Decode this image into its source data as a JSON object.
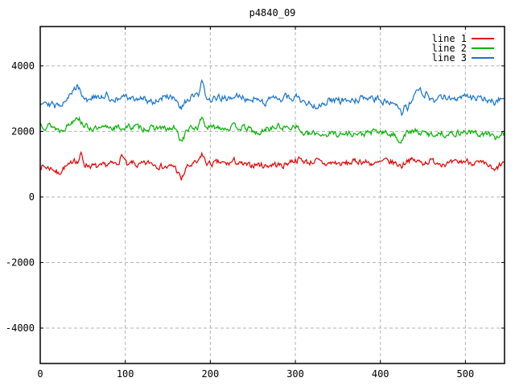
{
  "title": "p4840_09",
  "chart_data": {
    "type": "line",
    "title": "p4840_09",
    "xlabel": "",
    "ylabel": "",
    "xlim": [
      0,
      546
    ],
    "ylim": [
      -5080,
      5200
    ],
    "x_ticks": [
      0,
      100,
      200,
      300,
      400,
      500
    ],
    "y_ticks": [
      -4000,
      -2000,
      0,
      2000,
      4000
    ],
    "grid": true,
    "grid_color": "#b4b4b4",
    "legend_position": "top-right",
    "n_points": 547,
    "series": [
      {
        "name": "line 1",
        "color": "#e60000",
        "noise": {
          "amplitude": 80,
          "ar": 0.45,
          "seed": 7
        },
        "keypoints": [
          [
            0,
            950
          ],
          [
            8,
            900
          ],
          [
            15,
            870
          ],
          [
            21,
            700
          ],
          [
            28,
            900
          ],
          [
            35,
            950
          ],
          [
            40,
            1200
          ],
          [
            44,
            1050
          ],
          [
            48,
            1300
          ],
          [
            52,
            1000
          ],
          [
            60,
            950
          ],
          [
            70,
            900
          ],
          [
            80,
            1000
          ],
          [
            90,
            1000
          ],
          [
            97,
            1280
          ],
          [
            103,
            900
          ],
          [
            108,
            1050
          ],
          [
            115,
            950
          ],
          [
            122,
            1000
          ],
          [
            130,
            1050
          ],
          [
            140,
            950
          ],
          [
            150,
            900
          ],
          [
            158,
            950
          ],
          [
            166,
            520
          ],
          [
            172,
            900
          ],
          [
            180,
            1000
          ],
          [
            186,
            1050
          ],
          [
            190,
            1320
          ],
          [
            195,
            1050
          ],
          [
            200,
            1000
          ],
          [
            210,
            1050
          ],
          [
            220,
            1000
          ],
          [
            228,
            1100
          ],
          [
            235,
            1000
          ],
          [
            245,
            950
          ],
          [
            255,
            1000
          ],
          [
            265,
            950
          ],
          [
            275,
            1000
          ],
          [
            285,
            950
          ],
          [
            295,
            1100
          ],
          [
            305,
            1150
          ],
          [
            315,
            1050
          ],
          [
            325,
            1100
          ],
          [
            335,
            1000
          ],
          [
            345,
            1050
          ],
          [
            355,
            1000
          ],
          [
            365,
            1050
          ],
          [
            375,
            1100
          ],
          [
            385,
            1050
          ],
          [
            395,
            1000
          ],
          [
            405,
            1100
          ],
          [
            415,
            1050
          ],
          [
            425,
            950
          ],
          [
            432,
            1150
          ],
          [
            440,
            1100
          ],
          [
            450,
            1050
          ],
          [
            460,
            1100
          ],
          [
            470,
            1050
          ],
          [
            480,
            1000
          ],
          [
            490,
            1050
          ],
          [
            500,
            1100
          ],
          [
            510,
            1050
          ],
          [
            520,
            1000
          ],
          [
            528,
            950
          ],
          [
            534,
            760
          ],
          [
            540,
            950
          ],
          [
            546,
            1050
          ]
        ]
      },
      {
        "name": "line 2",
        "color": "#00b400",
        "noise": {
          "amplitude": 80,
          "ar": 0.45,
          "seed": 13
        },
        "keypoints": [
          [
            0,
            2250
          ],
          [
            6,
            2150
          ],
          [
            12,
            2200
          ],
          [
            18,
            2100
          ],
          [
            24,
            2030
          ],
          [
            30,
            2150
          ],
          [
            36,
            2250
          ],
          [
            43,
            2500
          ],
          [
            48,
            2300
          ],
          [
            54,
            2150
          ],
          [
            60,
            2100
          ],
          [
            70,
            2050
          ],
          [
            80,
            2150
          ],
          [
            90,
            2100
          ],
          [
            100,
            2120
          ],
          [
            110,
            2150
          ],
          [
            120,
            2100
          ],
          [
            130,
            2080
          ],
          [
            140,
            2120
          ],
          [
            150,
            2050
          ],
          [
            158,
            2100
          ],
          [
            166,
            1700
          ],
          [
            173,
            2050
          ],
          [
            180,
            2100
          ],
          [
            186,
            2150
          ],
          [
            190,
            2450
          ],
          [
            195,
            2150
          ],
          [
            200,
            2100
          ],
          [
            210,
            2150
          ],
          [
            220,
            2100
          ],
          [
            230,
            2150
          ],
          [
            240,
            2100
          ],
          [
            248,
            2050
          ],
          [
            257,
            1880
          ],
          [
            264,
            2080
          ],
          [
            272,
            2100
          ],
          [
            280,
            2150
          ],
          [
            290,
            2100
          ],
          [
            300,
            2200
          ],
          [
            308,
            1950
          ],
          [
            315,
            1900
          ],
          [
            325,
            1950
          ],
          [
            335,
            1900
          ],
          [
            345,
            1950
          ],
          [
            355,
            1900
          ],
          [
            365,
            1950
          ],
          [
            375,
            1900
          ],
          [
            385,
            1950
          ],
          [
            395,
            2000
          ],
          [
            405,
            1950
          ],
          [
            415,
            1900
          ],
          [
            424,
            1700
          ],
          [
            430,
            1950
          ],
          [
            440,
            2000
          ],
          [
            450,
            1950
          ],
          [
            460,
            1900
          ],
          [
            470,
            1950
          ],
          [
            480,
            1900
          ],
          [
            490,
            1950
          ],
          [
            500,
            2000
          ],
          [
            510,
            1950
          ],
          [
            520,
            1900
          ],
          [
            528,
            1950
          ],
          [
            534,
            1760
          ],
          [
            540,
            1900
          ],
          [
            546,
            1950
          ]
        ]
      },
      {
        "name": "line 3",
        "color": "#1874cd",
        "noise": {
          "amplitude": 90,
          "ar": 0.45,
          "seed": 29
        },
        "keypoints": [
          [
            0,
            2900
          ],
          [
            6,
            2950
          ],
          [
            12,
            2850
          ],
          [
            18,
            2750
          ],
          [
            24,
            2850
          ],
          [
            30,
            3000
          ],
          [
            36,
            3100
          ],
          [
            44,
            3450
          ],
          [
            50,
            3100
          ],
          [
            56,
            2950
          ],
          [
            62,
            3050
          ],
          [
            70,
            3000
          ],
          [
            78,
            3100
          ],
          [
            86,
            2950
          ],
          [
            94,
            3000
          ],
          [
            102,
            3050
          ],
          [
            110,
            2950
          ],
          [
            118,
            3050
          ],
          [
            126,
            2950
          ],
          [
            134,
            2900
          ],
          [
            142,
            3000
          ],
          [
            150,
            3100
          ],
          [
            158,
            2950
          ],
          [
            166,
            2650
          ],
          [
            172,
            2950
          ],
          [
            180,
            3050
          ],
          [
            186,
            3100
          ],
          [
            190,
            3480
          ],
          [
            195,
            3100
          ],
          [
            200,
            2950
          ],
          [
            208,
            3000
          ],
          [
            216,
            3050
          ],
          [
            224,
            2950
          ],
          [
            232,
            3100
          ],
          [
            240,
            3000
          ],
          [
            248,
            3050
          ],
          [
            256,
            2950
          ],
          [
            264,
            2900
          ],
          [
            272,
            3000
          ],
          [
            280,
            2950
          ],
          [
            288,
            3050
          ],
          [
            296,
            3000
          ],
          [
            300,
            3100
          ],
          [
            308,
            2900
          ],
          [
            316,
            2850
          ],
          [
            324,
            2800
          ],
          [
            332,
            2850
          ],
          [
            340,
            2950
          ],
          [
            348,
            2900
          ],
          [
            356,
            2950
          ],
          [
            364,
            2900
          ],
          [
            372,
            2950
          ],
          [
            380,
            3000
          ],
          [
            388,
            2950
          ],
          [
            396,
            3000
          ],
          [
            404,
            2900
          ],
          [
            412,
            2950
          ],
          [
            418,
            2900
          ],
          [
            422,
            2750
          ],
          [
            425,
            2550
          ],
          [
            428,
            2800
          ],
          [
            432,
            2700
          ],
          [
            436,
            2900
          ],
          [
            442,
            3150
          ],
          [
            446,
            3250
          ],
          [
            452,
            3150
          ],
          [
            458,
            3050
          ],
          [
            464,
            2950
          ],
          [
            470,
            3000
          ],
          [
            478,
            3050
          ],
          [
            486,
            3000
          ],
          [
            494,
            3050
          ],
          [
            502,
            3100
          ],
          [
            510,
            3000
          ],
          [
            518,
            3050
          ],
          [
            526,
            2950
          ],
          [
            534,
            2900
          ],
          [
            540,
            3000
          ],
          [
            546,
            2950
          ]
        ]
      }
    ]
  }
}
